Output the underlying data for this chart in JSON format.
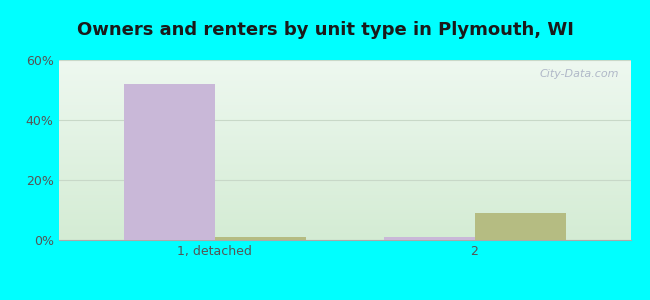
{
  "title": "Owners and renters by unit type in Plymouth, WI",
  "categories": [
    "1, detached",
    "2"
  ],
  "owner_values": [
    52,
    1
  ],
  "renter_values": [
    1,
    9
  ],
  "owner_color": "#c9b8d8",
  "renter_color": "#b5bc82",
  "ylim": [
    0,
    60
  ],
  "yticks": [
    0,
    20,
    40,
    60
  ],
  "ytick_labels": [
    "0%",
    "20%",
    "40%",
    "60%"
  ],
  "bar_width": 0.35,
  "bg_color_bottom": "#d4ecd4",
  "bg_color_top": "#eef8f0",
  "outer_color": "#00ffff",
  "watermark": "City-Data.com",
  "title_fontsize": 13,
  "tick_fontsize": 9,
  "legend_fontsize": 9
}
